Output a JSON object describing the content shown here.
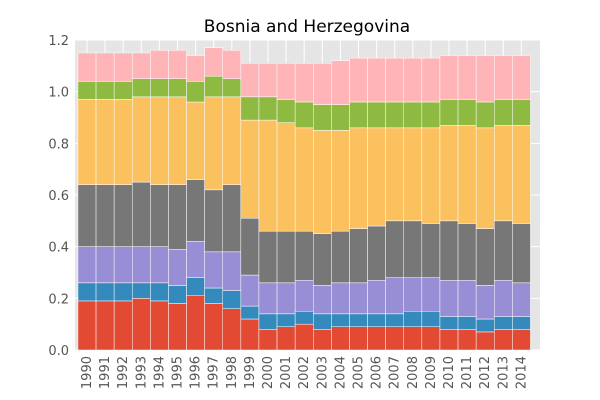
{
  "chart_data": {
    "type": "bar",
    "stacked": true,
    "title": "Bosnia and Herzegovina",
    "xlabel": "",
    "ylabel": "",
    "ylim": [
      0,
      1.2
    ],
    "yticks": [
      "0.0",
      "0.2",
      "0.4",
      "0.6",
      "0.8",
      "1.0",
      "1.2"
    ],
    "grid": true,
    "legend": "none",
    "categories": [
      "1990",
      "1991",
      "1992",
      "1993",
      "1994",
      "1995",
      "1996",
      "1997",
      "1998",
      "1999",
      "2000",
      "2001",
      "2002",
      "2003",
      "2004",
      "2005",
      "2006",
      "2007",
      "2008",
      "2009",
      "2010",
      "2011",
      "2012",
      "2013",
      "2014"
    ],
    "series": [
      {
        "color": "#E24A33",
        "values": [
          0.19,
          0.19,
          0.19,
          0.2,
          0.19,
          0.18,
          0.21,
          0.18,
          0.16,
          0.12,
          0.08,
          0.09,
          0.1,
          0.08,
          0.09,
          0.09,
          0.09,
          0.09,
          0.09,
          0.09,
          0.08,
          0.08,
          0.07,
          0.08,
          0.08
        ]
      },
      {
        "color": "#348ABD",
        "values": [
          0.07,
          0.07,
          0.07,
          0.06,
          0.07,
          0.07,
          0.07,
          0.06,
          0.07,
          0.05,
          0.06,
          0.05,
          0.05,
          0.06,
          0.05,
          0.05,
          0.05,
          0.05,
          0.06,
          0.06,
          0.05,
          0.05,
          0.05,
          0.05,
          0.05
        ]
      },
      {
        "color": "#988ED5",
        "values": [
          0.14,
          0.14,
          0.14,
          0.14,
          0.14,
          0.14,
          0.14,
          0.14,
          0.15,
          0.12,
          0.12,
          0.12,
          0.12,
          0.11,
          0.12,
          0.12,
          0.13,
          0.14,
          0.13,
          0.13,
          0.14,
          0.14,
          0.13,
          0.14,
          0.13
        ]
      },
      {
        "color": "#777777",
        "values": [
          0.24,
          0.24,
          0.24,
          0.25,
          0.24,
          0.25,
          0.24,
          0.24,
          0.26,
          0.22,
          0.2,
          0.2,
          0.19,
          0.2,
          0.2,
          0.21,
          0.21,
          0.22,
          0.22,
          0.21,
          0.23,
          0.22,
          0.22,
          0.23,
          0.23
        ]
      },
      {
        "color": "#FBC15E",
        "values": [
          0.33,
          0.33,
          0.33,
          0.33,
          0.34,
          0.34,
          0.3,
          0.36,
          0.34,
          0.38,
          0.43,
          0.42,
          0.4,
          0.4,
          0.39,
          0.39,
          0.38,
          0.36,
          0.36,
          0.37,
          0.37,
          0.38,
          0.39,
          0.37,
          0.38
        ]
      },
      {
        "color": "#8EBA42",
        "values": [
          0.07,
          0.07,
          0.07,
          0.07,
          0.07,
          0.07,
          0.08,
          0.08,
          0.07,
          0.09,
          0.09,
          0.09,
          0.1,
          0.1,
          0.1,
          0.1,
          0.1,
          0.1,
          0.1,
          0.1,
          0.1,
          0.1,
          0.1,
          0.1,
          0.1
        ]
      },
      {
        "color": "#FFB5B8",
        "values": [
          0.11,
          0.11,
          0.11,
          0.1,
          0.11,
          0.11,
          0.1,
          0.11,
          0.11,
          0.13,
          0.13,
          0.14,
          0.15,
          0.16,
          0.17,
          0.17,
          0.17,
          0.17,
          0.17,
          0.17,
          0.17,
          0.17,
          0.18,
          0.17,
          0.17
        ]
      }
    ]
  }
}
